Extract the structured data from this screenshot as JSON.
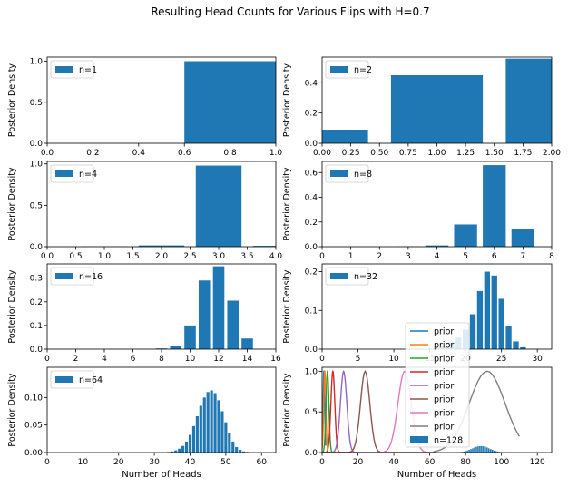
{
  "figure": {
    "title": "Resulting Head Counts for Various Flips with H=0.7"
  },
  "chart_data": [
    {
      "type": "bar",
      "legend": "n=1",
      "ylabel": "Posterior Density",
      "xlabel": "",
      "xlim": [
        0,
        1
      ],
      "ylim": [
        0,
        1.05
      ],
      "xticks": [
        "0.0",
        "0.2",
        "0.4",
        "0.6",
        "0.8",
        "1.0"
      ],
      "yticks": [
        "0.0",
        "0.5",
        "1.0"
      ],
      "bar_width": 0.8,
      "x": [
        1
      ],
      "values": [
        1.0
      ]
    },
    {
      "type": "bar",
      "legend": "n=2",
      "ylabel": "Posterior Density",
      "xlabel": "",
      "xlim": [
        0,
        2
      ],
      "ylim": [
        0,
        0.57
      ],
      "xticks": [
        "0.00",
        "0.25",
        "0.50",
        "0.75",
        "1.00",
        "1.25",
        "1.50",
        "1.75",
        "2.00"
      ],
      "yticks": [
        "0.0",
        "0.2",
        "0.4"
      ],
      "bar_width": 0.8,
      "x": [
        0,
        1,
        2
      ],
      "values": [
        0.09,
        0.45,
        0.56
      ]
    },
    {
      "type": "bar",
      "legend": "n=4",
      "ylabel": "Posterior Density",
      "xlabel": "",
      "xlim": [
        0,
        4
      ],
      "ylim": [
        0,
        1.03
      ],
      "xticks": [
        "0.0",
        "0.5",
        "1.0",
        "1.5",
        "2.0",
        "2.5",
        "3.0",
        "3.5",
        "4.0"
      ],
      "yticks": [
        "0.0",
        "0.5",
        "1.0"
      ],
      "bar_width": 0.8,
      "x": [
        0,
        1,
        2,
        3,
        4
      ],
      "values": [
        0.0,
        0.003,
        0.015,
        0.98,
        0.01
      ]
    },
    {
      "type": "bar",
      "legend": "n=8",
      "ylabel": "Posterior Density",
      "xlabel": "",
      "xlim": [
        0,
        8
      ],
      "ylim": [
        0,
        0.69
      ],
      "xticks": [
        "0",
        "1",
        "2",
        "3",
        "4",
        "5",
        "6",
        "7",
        "8"
      ],
      "yticks": [
        "0.0",
        "0.2",
        "0.4",
        "0.6"
      ],
      "bar_width": 0.8,
      "x": [
        3,
        4,
        5,
        6,
        7
      ],
      "values": [
        0.002,
        0.01,
        0.18,
        0.66,
        0.14
      ]
    },
    {
      "type": "bar",
      "legend": "n=16",
      "ylabel": "Posterior Density",
      "xlabel": "",
      "xlim": [
        0,
        16
      ],
      "ylim": [
        0,
        0.36
      ],
      "xticks": [
        "0",
        "2",
        "4",
        "6",
        "8",
        "10",
        "12",
        "14",
        "16"
      ],
      "yticks": [
        "0.0",
        "0.1",
        "0.2",
        "0.3"
      ],
      "bar_width": 0.8,
      "x": [
        8,
        9,
        10,
        11,
        12,
        13,
        14
      ],
      "values": [
        0.003,
        0.015,
        0.1,
        0.29,
        0.35,
        0.205,
        0.045
      ]
    },
    {
      "type": "bar",
      "legend": "n=32",
      "ylabel": "Posterior Density",
      "xlabel": "",
      "xlim": [
        0,
        32
      ],
      "ylim": [
        0,
        0.22
      ],
      "xticks": [
        "0",
        "5",
        "10",
        "15",
        "20",
        "25",
        "30"
      ],
      "yticks": [
        "0.0",
        "0.1",
        "0.2"
      ],
      "bar_width": 0.8,
      "x": [
        15,
        16,
        17,
        18,
        19,
        20,
        21,
        22,
        23,
        24,
        25,
        26,
        27,
        28
      ],
      "values": [
        0.001,
        0.003,
        0.008,
        0.018,
        0.03,
        0.05,
        0.09,
        0.15,
        0.2,
        0.19,
        0.13,
        0.06,
        0.02,
        0.005
      ]
    },
    {
      "type": "bar",
      "legend": "n=64",
      "ylabel": "Posterior Density",
      "xlabel": "Number of Heads",
      "xlim": [
        0,
        64
      ],
      "ylim": [
        0,
        0.155
      ],
      "xticks": [
        "0",
        "10",
        "20",
        "30",
        "40",
        "50",
        "60"
      ],
      "yticks": [
        "0.00",
        "0.05",
        "0.10"
      ],
      "bar_width": 0.8,
      "x": [
        34,
        35,
        36,
        37,
        38,
        39,
        40,
        41,
        42,
        43,
        44,
        45,
        46,
        47,
        48,
        49,
        50,
        51,
        52,
        53,
        54,
        55,
        56
      ],
      "values": [
        0.001,
        0.002,
        0.004,
        0.007,
        0.012,
        0.02,
        0.032,
        0.048,
        0.066,
        0.085,
        0.1,
        0.11,
        0.113,
        0.108,
        0.095,
        0.075,
        0.055,
        0.036,
        0.02,
        0.01,
        0.005,
        0.002,
        0.001
      ]
    },
    {
      "type": "bar",
      "legend": "n=128",
      "ylabel": "Posterior Density",
      "xlabel": "Number of Heads",
      "xlim": [
        0,
        128
      ],
      "ylim": [
        0,
        1.05
      ],
      "xticks": [
        "0",
        "20",
        "40",
        "60",
        "80",
        "100",
        "120"
      ],
      "yticks": [
        "0.0",
        "0.5",
        "1.0"
      ],
      "bar_width": 0.8,
      "x": [
        74,
        75,
        76,
        77,
        78,
        79,
        80,
        81,
        82,
        83,
        84,
        85,
        86,
        87,
        88,
        89,
        90,
        91,
        92,
        93,
        94,
        95,
        96,
        97,
        98,
        99,
        100,
        101,
        102,
        103,
        104,
        105
      ],
      "values": [
        0.001,
        0.002,
        0.003,
        0.005,
        0.008,
        0.012,
        0.018,
        0.025,
        0.033,
        0.042,
        0.052,
        0.062,
        0.07,
        0.076,
        0.079,
        0.079,
        0.076,
        0.07,
        0.062,
        0.052,
        0.042,
        0.033,
        0.025,
        0.018,
        0.012,
        0.008,
        0.005,
        0.003,
        0.002,
        0.001,
        0.001,
        0.0005
      ],
      "lines": [
        {
          "name": "prior",
          "color": "#1f77b4",
          "center": 1,
          "sigma": 0.45,
          "start": 0,
          "end": 2
        },
        {
          "name": "prior",
          "color": "#ff7f0e",
          "center": 1.5,
          "sigma": 0.6,
          "start": 0,
          "end": 4
        },
        {
          "name": "prior",
          "color": "#2ca02c",
          "center": 3,
          "sigma": 0.8,
          "start": 0,
          "end": 8
        },
        {
          "name": "prior",
          "color": "#d62728",
          "center": 6,
          "sigma": 1.1,
          "start": 0,
          "end": 16
        },
        {
          "name": "prior",
          "color": "#9467bd",
          "center": 12,
          "sigma": 1.8,
          "start": 0,
          "end": 32
        },
        {
          "name": "prior",
          "color": "#8c564b",
          "center": 24,
          "sigma": 2.6,
          "start": 0,
          "end": 64
        },
        {
          "name": "prior",
          "color": "#e377c2",
          "center": 46,
          "sigma": 3.7,
          "start": 30,
          "end": 64
        },
        {
          "name": "prior",
          "color": "#7f7f7f",
          "center": 92,
          "sigma": 10,
          "start": 62,
          "end": 110
        }
      ]
    }
  ]
}
